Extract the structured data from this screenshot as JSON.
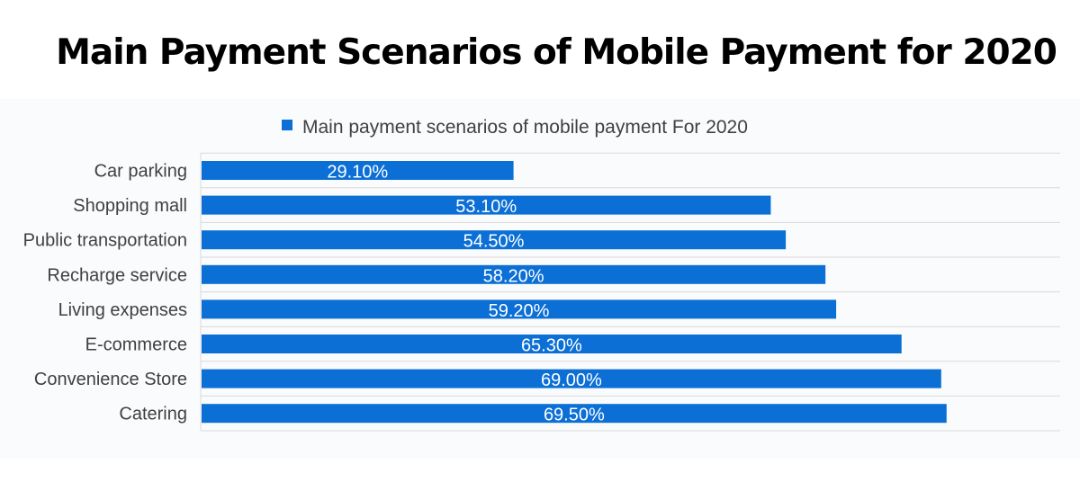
{
  "title": "Main Payment Scenarios of Mobile Payment for 2020",
  "colors": {
    "bar": "#0b6fd6",
    "grid": "#d9d9d9",
    "text": "#404040",
    "label": "#ffffff"
  },
  "chart_data": {
    "type": "bar",
    "orientation": "horizontal",
    "legend": {
      "label": "Main payment scenarios of mobile payment For 2020",
      "placement": "top"
    },
    "categories": [
      "Car parking",
      "Shopping mall",
      "Public transportation",
      "Recharge service",
      "Living expenses",
      "E-commerce",
      "Convenience Store",
      "Catering"
    ],
    "series": [
      {
        "name": "Main payment scenarios of mobile payment For 2020",
        "values": [
          29.1,
          53.1,
          54.5,
          58.2,
          59.2,
          65.3,
          69.0,
          69.5
        ],
        "labels": [
          "29.10%",
          "53.10%",
          "54.50%",
          "58.20%",
          "59.20%",
          "65.30%",
          "69.00%",
          "69.50%"
        ]
      }
    ],
    "xlim": [
      0,
      80
    ],
    "grid": true
  }
}
